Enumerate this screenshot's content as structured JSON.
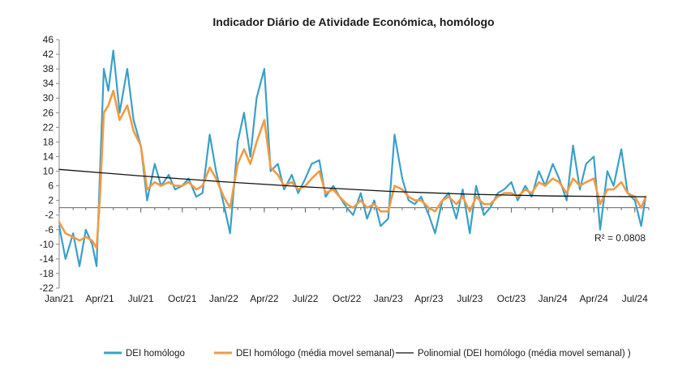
{
  "chart_data": {
    "type": "line",
    "title": "Indicador Diário de Atividade Económica, homólogo",
    "xlabel": "",
    "ylabel": "",
    "xlim": [
      "2021-01-01",
      "2024-08-01"
    ],
    "ylim": [
      -22,
      46
    ],
    "yticks": [
      46,
      42,
      38,
      34,
      30,
      26,
      22,
      18,
      14,
      10,
      6,
      2,
      -2,
      -6,
      -10,
      -14,
      -18,
      -22
    ],
    "xtick_labels": [
      "Jan/21",
      "Apr/21",
      "Jul/21",
      "Oct/21",
      "Jan/22",
      "Apr/22",
      "Jul/22",
      "Oct/22",
      "Jan/23",
      "Apr/23",
      "Jul/23",
      "Oct/23",
      "Jan/24",
      "Apr/24",
      "Jul/24"
    ],
    "xtick_dates": [
      "2021-01-01",
      "2021-04-01",
      "2021-07-01",
      "2021-10-01",
      "2022-01-01",
      "2022-04-01",
      "2022-07-01",
      "2022-10-01",
      "2023-01-01",
      "2023-04-01",
      "2023-07-01",
      "2023-10-01",
      "2024-01-01",
      "2024-04-01",
      "2024-07-01"
    ],
    "grid": false,
    "legend_position": "bottom",
    "annotation": "R² = 0.0808",
    "series": [
      {
        "name": "DEI homólogo",
        "color": "#3aa0c8",
        "x": [
          "2021-01-01",
          "2021-01-15",
          "2021-02-01",
          "2021-02-15",
          "2021-03-01",
          "2021-03-15",
          "2021-03-25",
          "2021-04-01",
          "2021-04-10",
          "2021-04-20",
          "2021-05-01",
          "2021-05-15",
          "2021-06-01",
          "2021-06-15",
          "2021-07-01",
          "2021-07-15",
          "2021-08-01",
          "2021-08-15",
          "2021-09-01",
          "2021-09-15",
          "2021-10-01",
          "2021-10-15",
          "2021-11-01",
          "2021-11-15",
          "2021-12-01",
          "2021-12-15",
          "2022-01-01",
          "2022-01-15",
          "2022-02-01",
          "2022-02-15",
          "2022-03-01",
          "2022-03-15",
          "2022-04-01",
          "2022-04-15",
          "2022-05-01",
          "2022-05-15",
          "2022-06-01",
          "2022-06-15",
          "2022-07-01",
          "2022-07-15",
          "2022-08-01",
          "2022-08-15",
          "2022-09-01",
          "2022-09-15",
          "2022-10-01",
          "2022-10-15",
          "2022-11-01",
          "2022-11-15",
          "2022-12-01",
          "2022-12-15",
          "2023-01-01",
          "2023-01-15",
          "2023-02-01",
          "2023-02-15",
          "2023-03-01",
          "2023-03-15",
          "2023-04-01",
          "2023-04-15",
          "2023-05-01",
          "2023-05-15",
          "2023-06-01",
          "2023-06-15",
          "2023-07-01",
          "2023-07-15",
          "2023-08-01",
          "2023-08-15",
          "2023-09-01",
          "2023-09-15",
          "2023-10-01",
          "2023-10-15",
          "2023-11-01",
          "2023-11-15",
          "2023-12-01",
          "2023-12-15",
          "2024-01-01",
          "2024-01-15",
          "2024-02-01",
          "2024-02-15",
          "2024-03-01",
          "2024-03-15",
          "2024-04-01",
          "2024-04-15",
          "2024-05-01",
          "2024-05-15",
          "2024-06-01",
          "2024-06-15",
          "2024-07-01",
          "2024-07-15",
          "2024-07-25"
        ],
        "y": [
          -5,
          -14,
          -7,
          -16,
          -6,
          -10,
          -16,
          8,
          38,
          32,
          43,
          26,
          38,
          24,
          17,
          2,
          12,
          6,
          9,
          5,
          6,
          8,
          3,
          4,
          20,
          10,
          1,
          -7,
          18,
          26,
          14,
          30,
          38,
          10,
          12,
          5,
          9,
          4,
          8,
          12,
          13,
          3,
          6,
          3,
          0,
          -2,
          4,
          -3,
          2,
          -5,
          -3,
          20,
          8,
          2,
          1,
          3,
          -2,
          -7,
          2,
          4,
          -3,
          5,
          -7,
          6,
          -2,
          0,
          4,
          5,
          7,
          2,
          6,
          3,
          10,
          6,
          12,
          8,
          2,
          17,
          5,
          12,
          14,
          -6,
          10,
          6,
          16,
          4,
          2,
          -5,
          3
        ]
      },
      {
        "name": "DEI homólogo (média movel semanal)",
        "color": "#f39a44",
        "x": [
          "2021-01-01",
          "2021-01-15",
          "2021-02-01",
          "2021-02-15",
          "2021-03-01",
          "2021-03-15",
          "2021-03-25",
          "2021-04-01",
          "2021-04-10",
          "2021-04-20",
          "2021-05-01",
          "2021-05-15",
          "2021-06-01",
          "2021-06-15",
          "2021-07-01",
          "2021-07-15",
          "2021-08-01",
          "2021-08-15",
          "2021-09-01",
          "2021-09-15",
          "2021-10-01",
          "2021-10-15",
          "2021-11-01",
          "2021-11-15",
          "2021-12-01",
          "2021-12-15",
          "2022-01-01",
          "2022-01-15",
          "2022-02-01",
          "2022-02-15",
          "2022-03-01",
          "2022-03-15",
          "2022-04-01",
          "2022-04-15",
          "2022-05-01",
          "2022-05-15",
          "2022-06-01",
          "2022-06-15",
          "2022-07-01",
          "2022-07-15",
          "2022-08-01",
          "2022-08-15",
          "2022-09-01",
          "2022-09-15",
          "2022-10-01",
          "2022-10-15",
          "2022-11-01",
          "2022-11-15",
          "2022-12-01",
          "2022-12-15",
          "2023-01-01",
          "2023-01-15",
          "2023-02-01",
          "2023-02-15",
          "2023-03-01",
          "2023-03-15",
          "2023-04-01",
          "2023-04-15",
          "2023-05-01",
          "2023-05-15",
          "2023-06-01",
          "2023-06-15",
          "2023-07-01",
          "2023-07-15",
          "2023-08-01",
          "2023-08-15",
          "2023-09-01",
          "2023-09-15",
          "2023-10-01",
          "2023-10-15",
          "2023-11-01",
          "2023-11-15",
          "2023-12-01",
          "2023-12-15",
          "2024-01-01",
          "2024-01-15",
          "2024-02-01",
          "2024-02-15",
          "2024-03-01",
          "2024-03-15",
          "2024-04-01",
          "2024-04-15",
          "2024-05-01",
          "2024-05-15",
          "2024-06-01",
          "2024-06-15",
          "2024-07-01",
          "2024-07-15",
          "2024-07-25"
        ],
        "y": [
          -4,
          -7,
          -8,
          -9,
          -8,
          -9,
          -11,
          2,
          26,
          28,
          32,
          24,
          28,
          21,
          17,
          5,
          7,
          6,
          7,
          6,
          6,
          7,
          5,
          6,
          11,
          8,
          3,
          0,
          12,
          16,
          12,
          18,
          24,
          11,
          9,
          6,
          7,
          5,
          6,
          8,
          10,
          4,
          5,
          3,
          1,
          0,
          2,
          0,
          1,
          -1,
          -1,
          6,
          5,
          3,
          2,
          2,
          0,
          -1,
          2,
          3,
          1,
          3,
          -1,
          3,
          1,
          1,
          3,
          4,
          4,
          3,
          5,
          4,
          7,
          6,
          8,
          7,
          4,
          8,
          6,
          7,
          8,
          1,
          5,
          5,
          7,
          4,
          3,
          0,
          3
        ]
      },
      {
        "name": "Polinomial (DEI homólogo (média movel semanal) )",
        "color": "#111111",
        "x": [
          "2021-01-01",
          "2021-07-01",
          "2022-01-01",
          "2022-07-01",
          "2023-01-01",
          "2023-07-01",
          "2024-01-01",
          "2024-07-25"
        ],
        "y": [
          10.5,
          8.7,
          7.1,
          5.7,
          4.5,
          3.7,
          3.2,
          3.0
        ]
      }
    ]
  }
}
